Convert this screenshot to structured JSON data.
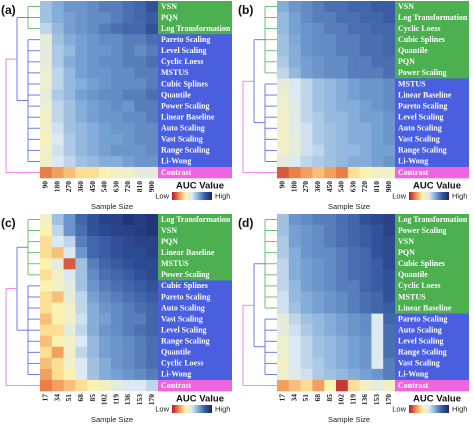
{
  "chart_data": [
    {
      "type": "heatmap",
      "panel": "(a)",
      "xlabel": "Sample Size",
      "colorbar_title": "AUC Value",
      "low_label": "Low",
      "high_label": "High",
      "clim": [
        0,
        1
      ],
      "colormap": [
        "#b2182b",
        "#f08a4b",
        "#fff3a8",
        "#dbe9f2",
        "#7aa6d6",
        "#34569f",
        "#1a2766"
      ],
      "columns": [
        90,
        180,
        270,
        360,
        450,
        540,
        630,
        720,
        810,
        900
      ],
      "rows": [
        "VSN",
        "PQN",
        "Log Transformation",
        "Pareto Scaling",
        "Level Scaling",
        "Cyclic Loess",
        "MSTUS",
        "Cubic Splines",
        "Quantile",
        "Power Scaling",
        "Linear Baseline",
        "Auto Scaling",
        "Vast Scaling",
        "Range Scaling",
        "Li-Wong",
        "Contrast"
      ],
      "row_colors": [
        "#4caf50",
        "#4caf50",
        "#4caf50",
        "#4a5ee0",
        "#4a5ee0",
        "#4a5ee0",
        "#4a5ee0",
        "#4a5ee0",
        "#4a5ee0",
        "#4a5ee0",
        "#4a5ee0",
        "#4a5ee0",
        "#4a5ee0",
        "#4a5ee0",
        "#4a5ee0",
        "#ee66dd"
      ],
      "values": [
        [
          0.6,
          0.65,
          0.7,
          0.7,
          0.72,
          0.75,
          0.75,
          0.78,
          0.8,
          0.85
        ],
        [
          0.6,
          0.65,
          0.68,
          0.7,
          0.72,
          0.72,
          0.75,
          0.78,
          0.8,
          0.82
        ],
        [
          0.55,
          0.62,
          0.68,
          0.7,
          0.72,
          0.75,
          0.78,
          0.8,
          0.8,
          0.85
        ],
        [
          0.45,
          0.6,
          0.65,
          0.68,
          0.7,
          0.72,
          0.72,
          0.75,
          0.75,
          0.78
        ],
        [
          0.45,
          0.58,
          0.62,
          0.68,
          0.7,
          0.7,
          0.72,
          0.75,
          0.72,
          0.75
        ],
        [
          0.45,
          0.58,
          0.65,
          0.68,
          0.7,
          0.72,
          0.72,
          0.75,
          0.75,
          0.78
        ],
        [
          0.42,
          0.55,
          0.62,
          0.68,
          0.7,
          0.7,
          0.72,
          0.72,
          0.75,
          0.75
        ],
        [
          0.42,
          0.55,
          0.62,
          0.65,
          0.68,
          0.7,
          0.72,
          0.72,
          0.72,
          0.75
        ],
        [
          0.45,
          0.58,
          0.62,
          0.68,
          0.7,
          0.72,
          0.72,
          0.75,
          0.75,
          0.78
        ],
        [
          0.42,
          0.55,
          0.6,
          0.65,
          0.68,
          0.7,
          0.72,
          0.7,
          0.75,
          0.75
        ],
        [
          0.4,
          0.55,
          0.6,
          0.65,
          0.68,
          0.7,
          0.7,
          0.72,
          0.72,
          0.75
        ],
        [
          0.4,
          0.52,
          0.6,
          0.62,
          0.65,
          0.68,
          0.7,
          0.7,
          0.72,
          0.72
        ],
        [
          0.38,
          0.5,
          0.58,
          0.62,
          0.65,
          0.68,
          0.68,
          0.7,
          0.72,
          0.72
        ],
        [
          0.4,
          0.52,
          0.58,
          0.62,
          0.65,
          0.68,
          0.7,
          0.7,
          0.7,
          0.72
        ],
        [
          0.4,
          0.5,
          0.55,
          0.6,
          0.62,
          0.65,
          0.65,
          0.68,
          0.7,
          0.7
        ],
        [
          0.15,
          0.2,
          0.25,
          0.3,
          0.3,
          0.35,
          0.4,
          0.4,
          0.45,
          0.45
        ]
      ]
    },
    {
      "type": "heatmap",
      "panel": "(b)",
      "xlabel": "Sample Size",
      "colorbar_title": "AUC Value",
      "low_label": "Low",
      "high_label": "High",
      "clim": [
        0,
        1
      ],
      "colormap": [
        "#b2182b",
        "#f08a4b",
        "#fff3a8",
        "#dbe9f2",
        "#7aa6d6",
        "#34569f",
        "#1a2766"
      ],
      "columns": [
        90,
        180,
        270,
        360,
        450,
        540,
        630,
        720,
        810,
        900
      ],
      "rows": [
        "VSN",
        "Log Transformation",
        "Cyclic Loess",
        "Cubic Splines",
        "Quantile",
        "PQN",
        "Power Scaling",
        "MSTUS",
        "Linear Baseline",
        "Pareto Scaling",
        "Level Scaling",
        "Auto Scaling",
        "Vast Scaling",
        "Range Scaling",
        "Li-Wong",
        "Contrast"
      ],
      "row_colors": [
        "#4caf50",
        "#4caf50",
        "#4caf50",
        "#4caf50",
        "#4caf50",
        "#4caf50",
        "#4caf50",
        "#4a5ee0",
        "#4a5ee0",
        "#4a5ee0",
        "#4a5ee0",
        "#4a5ee0",
        "#4a5ee0",
        "#4a5ee0",
        "#4a5ee0",
        "#ee66dd"
      ],
      "values": [
        [
          0.65,
          0.7,
          0.72,
          0.75,
          0.78,
          0.78,
          0.8,
          0.8,
          0.82,
          0.82
        ],
        [
          0.62,
          0.68,
          0.72,
          0.75,
          0.75,
          0.78,
          0.78,
          0.8,
          0.8,
          0.82
        ],
        [
          0.62,
          0.68,
          0.7,
          0.72,
          0.75,
          0.75,
          0.78,
          0.78,
          0.8,
          0.8
        ],
        [
          0.6,
          0.66,
          0.7,
          0.72,
          0.72,
          0.75,
          0.75,
          0.78,
          0.78,
          0.8
        ],
        [
          0.6,
          0.65,
          0.7,
          0.72,
          0.72,
          0.75,
          0.75,
          0.78,
          0.78,
          0.8
        ],
        [
          0.58,
          0.65,
          0.68,
          0.7,
          0.72,
          0.72,
          0.75,
          0.75,
          0.78,
          0.78
        ],
        [
          0.55,
          0.62,
          0.68,
          0.7,
          0.72,
          0.72,
          0.75,
          0.75,
          0.75,
          0.78
        ],
        [
          0.45,
          0.5,
          0.55,
          0.6,
          0.62,
          0.65,
          0.68,
          0.7,
          0.7,
          0.72
        ],
        [
          0.42,
          0.5,
          0.55,
          0.6,
          0.62,
          0.65,
          0.68,
          0.7,
          0.7,
          0.72
        ],
        [
          0.42,
          0.48,
          0.55,
          0.6,
          0.62,
          0.65,
          0.65,
          0.68,
          0.7,
          0.72
        ],
        [
          0.4,
          0.48,
          0.55,
          0.58,
          0.62,
          0.62,
          0.65,
          0.68,
          0.68,
          0.7
        ],
        [
          0.4,
          0.48,
          0.52,
          0.58,
          0.6,
          0.62,
          0.65,
          0.65,
          0.68,
          0.7
        ],
        [
          0.4,
          0.45,
          0.52,
          0.58,
          0.6,
          0.62,
          0.65,
          0.65,
          0.68,
          0.7
        ],
        [
          0.4,
          0.45,
          0.52,
          0.55,
          0.6,
          0.62,
          0.62,
          0.65,
          0.68,
          0.68
        ],
        [
          0.45,
          0.5,
          0.55,
          0.58,
          0.6,
          0.62,
          0.65,
          0.65,
          0.68,
          0.7
        ],
        [
          0.1,
          0.15,
          0.2,
          0.25,
          0.2,
          0.15,
          0.3,
          0.35,
          0.4,
          0.4
        ]
      ]
    },
    {
      "type": "heatmap",
      "panel": "(c)",
      "xlabel": "Sample Size",
      "colorbar_title": "AUC Value",
      "low_label": "Low",
      "high_label": "High",
      "clim": [
        0,
        1
      ],
      "colormap": [
        "#b2182b",
        "#f08a4b",
        "#fff3a8",
        "#dbe9f2",
        "#7aa6d6",
        "#34569f",
        "#1a2766"
      ],
      "columns": [
        17,
        34,
        51,
        68,
        85,
        102,
        119,
        136,
        153,
        170
      ],
      "rows": [
        "Log Transformation",
        "VSN",
        "PQN",
        "Linear Baseline",
        "MSTUS",
        "Power Scaling",
        "Cubic Splines",
        "Pareto Scaling",
        "Auto Scaling",
        "Vast Scaling",
        "Level Scaling",
        "Range Scaling",
        "Quantile",
        "Cyclic Loess",
        "Li-Wong",
        "Contrast"
      ],
      "row_colors": [
        "#4caf50",
        "#4caf50",
        "#4caf50",
        "#4caf50",
        "#4caf50",
        "#4caf50",
        "#4a5ee0",
        "#4a5ee0",
        "#4a5ee0",
        "#4a5ee0",
        "#4a5ee0",
        "#4a5ee0",
        "#4a5ee0",
        "#4a5ee0",
        "#4a5ee0",
        "#ee66dd"
      ],
      "values": [
        [
          0.4,
          0.6,
          0.7,
          0.8,
          0.85,
          0.9,
          0.9,
          0.95,
          0.92,
          0.95
        ],
        [
          0.35,
          0.55,
          0.7,
          0.78,
          0.85,
          0.88,
          0.9,
          0.9,
          0.92,
          0.95
        ],
        [
          0.3,
          0.5,
          0.55,
          0.75,
          0.8,
          0.82,
          0.85,
          0.88,
          0.9,
          0.9
        ],
        [
          0.3,
          0.25,
          0.5,
          0.7,
          0.8,
          0.82,
          0.85,
          0.88,
          0.88,
          0.9
        ],
        [
          0.35,
          0.45,
          0.1,
          0.6,
          0.75,
          0.8,
          0.82,
          0.85,
          0.88,
          0.88
        ],
        [
          0.3,
          0.4,
          0.5,
          0.6,
          0.72,
          0.78,
          0.8,
          0.82,
          0.85,
          0.88
        ],
        [
          0.35,
          0.4,
          0.45,
          0.6,
          0.7,
          0.75,
          0.78,
          0.8,
          0.82,
          0.85
        ],
        [
          0.3,
          0.25,
          0.45,
          0.55,
          0.68,
          0.72,
          0.75,
          0.78,
          0.8,
          0.82
        ],
        [
          0.3,
          0.35,
          0.4,
          0.55,
          0.65,
          0.7,
          0.72,
          0.75,
          0.78,
          0.8
        ],
        [
          0.25,
          0.35,
          0.4,
          0.52,
          0.65,
          0.68,
          0.72,
          0.75,
          0.75,
          0.8
        ],
        [
          0.3,
          0.3,
          0.45,
          0.55,
          0.65,
          0.7,
          0.72,
          0.75,
          0.78,
          0.8
        ],
        [
          0.25,
          0.35,
          0.4,
          0.5,
          0.62,
          0.68,
          0.7,
          0.72,
          0.75,
          0.78
        ],
        [
          0.3,
          0.2,
          0.4,
          0.55,
          0.62,
          0.68,
          0.7,
          0.72,
          0.75,
          0.78
        ],
        [
          0.25,
          0.3,
          0.4,
          0.5,
          0.6,
          0.65,
          0.7,
          0.72,
          0.75,
          0.78
        ],
        [
          0.2,
          0.3,
          0.35,
          0.5,
          0.6,
          0.65,
          0.68,
          0.7,
          0.72,
          0.75
        ],
        [
          0.15,
          0.2,
          0.25,
          0.3,
          0.35,
          0.4,
          0.45,
          0.5,
          0.5,
          0.55
        ]
      ]
    },
    {
      "type": "heatmap",
      "panel": "(d)",
      "xlabel": "Sample Size",
      "colorbar_title": "AUC Value",
      "low_label": "Low",
      "high_label": "High",
      "clim": [
        0,
        1
      ],
      "colormap": [
        "#b2182b",
        "#f08a4b",
        "#fff3a8",
        "#dbe9f2",
        "#7aa6d6",
        "#34569f",
        "#1a2766"
      ],
      "columns": [
        17,
        34,
        51,
        68,
        85,
        102,
        119,
        136,
        153,
        170
      ],
      "rows": [
        "Log Transformation",
        "Power Scaling",
        "VSN",
        "PQN",
        "Cubic Splines",
        "Quantile",
        "Cyclic Loess",
        "MSTUS",
        "Linear Baseline",
        "Pareto Scaling",
        "Auto Scaling",
        "Level Scaling",
        "Range Scaling",
        "Vast Scaling",
        "Li-Wong",
        "Contrast"
      ],
      "row_colors": [
        "#4caf50",
        "#4caf50",
        "#4caf50",
        "#4caf50",
        "#4caf50",
        "#4caf50",
        "#4caf50",
        "#4caf50",
        "#4caf50",
        "#4a5ee0",
        "#4a5ee0",
        "#4a5ee0",
        "#4a5ee0",
        "#4a5ee0",
        "#4a5ee0",
        "#ee66dd"
      ],
      "values": [
        [
          0.6,
          0.7,
          0.72,
          0.75,
          0.75,
          0.78,
          0.8,
          0.85,
          0.88,
          0.9
        ],
        [
          0.6,
          0.68,
          0.7,
          0.72,
          0.75,
          0.78,
          0.8,
          0.82,
          0.85,
          0.9
        ],
        [
          0.58,
          0.68,
          0.7,
          0.72,
          0.75,
          0.78,
          0.8,
          0.82,
          0.85,
          0.88
        ],
        [
          0.58,
          0.65,
          0.7,
          0.72,
          0.72,
          0.75,
          0.78,
          0.8,
          0.85,
          0.88
        ],
        [
          0.55,
          0.65,
          0.68,
          0.7,
          0.72,
          0.75,
          0.78,
          0.8,
          0.82,
          0.88
        ],
        [
          0.55,
          0.65,
          0.68,
          0.7,
          0.72,
          0.75,
          0.78,
          0.8,
          0.82,
          0.85
        ],
        [
          0.55,
          0.62,
          0.68,
          0.7,
          0.72,
          0.75,
          0.75,
          0.8,
          0.82,
          0.85
        ],
        [
          0.52,
          0.62,
          0.65,
          0.68,
          0.7,
          0.72,
          0.75,
          0.78,
          0.8,
          0.85
        ],
        [
          0.52,
          0.6,
          0.65,
          0.68,
          0.7,
          0.72,
          0.75,
          0.78,
          0.8,
          0.82
        ],
        [
          0.45,
          0.55,
          0.6,
          0.62,
          0.65,
          0.68,
          0.7,
          0.72,
          0.5,
          0.8
        ],
        [
          0.45,
          0.52,
          0.58,
          0.62,
          0.65,
          0.68,
          0.7,
          0.72,
          0.5,
          0.78
        ],
        [
          0.42,
          0.5,
          0.55,
          0.6,
          0.62,
          0.65,
          0.68,
          0.7,
          0.5,
          0.78
        ],
        [
          0.42,
          0.5,
          0.55,
          0.6,
          0.62,
          0.65,
          0.68,
          0.7,
          0.5,
          0.78
        ],
        [
          0.4,
          0.5,
          0.55,
          0.58,
          0.62,
          0.65,
          0.68,
          0.7,
          0.5,
          0.75
        ],
        [
          0.42,
          0.48,
          0.52,
          0.58,
          0.6,
          0.62,
          0.65,
          0.68,
          0.7,
          0.75
        ],
        [
          0.2,
          0.25,
          0.3,
          0.2,
          0.35,
          0.05,
          0.3,
          0.4,
          0.45,
          0.4
        ]
      ]
    }
  ]
}
